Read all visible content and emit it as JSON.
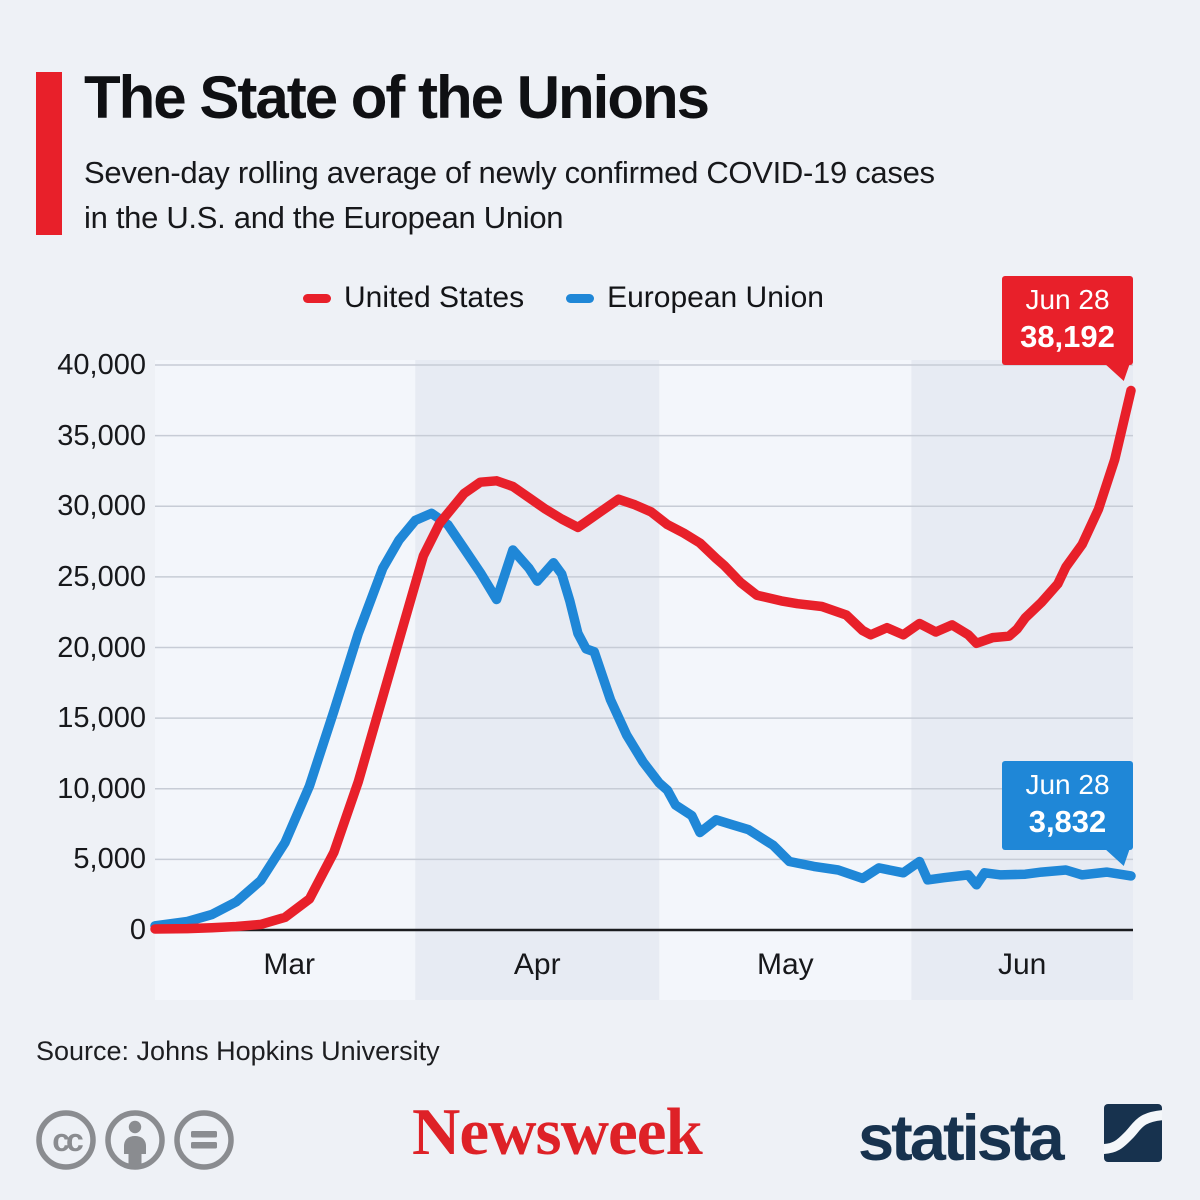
{
  "header": {
    "title": "The State of the Unions",
    "subtitle": "Seven-day rolling average of newly confirmed COVID-19 cases\nin the U.S. and the European Union"
  },
  "colors": {
    "accent_red": "#e8202a",
    "accent_blue": "#1f87d7",
    "page_bg": "#eef1f6",
    "plot_bg": "#f3f6fb",
    "band_bg": "#e7ebf3",
    "gridline": "#c7ccd6",
    "axis_line": "#1b1c1f",
    "cc_gray": "#8a8c90",
    "newsweek_red": "#de2127",
    "statista_navy": "#17324e"
  },
  "chart_data": {
    "type": "line",
    "title": "The State of the Unions",
    "subtitle": "Seven-day rolling average of newly confirmed COVID-19 cases in the U.S. and the European Union",
    "x_unit": "days since Feb 29, 2020",
    "ylim": [
      0,
      40000
    ],
    "grid": true,
    "legend_position": "top-center",
    "y_ticks": [
      {
        "v": 0,
        "label": "0"
      },
      {
        "v": 5000,
        "label": "5,000"
      },
      {
        "v": 10000,
        "label": "10,000"
      },
      {
        "v": 15000,
        "label": "15,000"
      },
      {
        "v": 20000,
        "label": "20,000"
      },
      {
        "v": 25000,
        "label": "25,000"
      },
      {
        "v": 30000,
        "label": "30,000"
      },
      {
        "v": 35000,
        "label": "35,000"
      },
      {
        "v": 40000,
        "label": "40,000"
      }
    ],
    "months": [
      {
        "label": "Mar",
        "start_day": 1,
        "end_day": 32,
        "shaded": false
      },
      {
        "label": "Apr",
        "start_day": 32,
        "end_day": 62,
        "shaded": true
      },
      {
        "label": "May",
        "start_day": 62,
        "end_day": 93,
        "shaded": false
      },
      {
        "label": "Jun",
        "start_day": 93,
        "end_day": 120,
        "shaded": true
      }
    ],
    "series": [
      {
        "name": "United States",
        "color": "#e8202a",
        "end_label": {
          "date": "Jun 28",
          "value": "38,192"
        },
        "points": [
          [
            0,
            70
          ],
          [
            4,
            100
          ],
          [
            7,
            160
          ],
          [
            10,
            250
          ],
          [
            13,
            400
          ],
          [
            16,
            900
          ],
          [
            19,
            2200
          ],
          [
            22,
            5500
          ],
          [
            25,
            10500
          ],
          [
            28,
            16500
          ],
          [
            31,
            22500
          ],
          [
            33,
            26500
          ],
          [
            35,
            28800
          ],
          [
            38,
            30900
          ],
          [
            40,
            31700
          ],
          [
            42,
            31800
          ],
          [
            44,
            31400
          ],
          [
            45,
            31000
          ],
          [
            46,
            30600
          ],
          [
            48,
            29800
          ],
          [
            50,
            29100
          ],
          [
            52,
            28500
          ],
          [
            53,
            28900
          ],
          [
            55,
            29700
          ],
          [
            57,
            30500
          ],
          [
            59,
            30100
          ],
          [
            61,
            29600
          ],
          [
            63,
            28700
          ],
          [
            65,
            28100
          ],
          [
            67,
            27400
          ],
          [
            69,
            26300
          ],
          [
            70,
            25800
          ],
          [
            72,
            24600
          ],
          [
            74,
            23700
          ],
          [
            77,
            23300
          ],
          [
            79,
            23100
          ],
          [
            82,
            22900
          ],
          [
            85,
            22300
          ],
          [
            87,
            21200
          ],
          [
            88,
            20900
          ],
          [
            90,
            21400
          ],
          [
            92,
            20900
          ],
          [
            94,
            21700
          ],
          [
            96,
            21100
          ],
          [
            98,
            21600
          ],
          [
            100,
            20900
          ],
          [
            101,
            20300
          ],
          [
            103,
            20700
          ],
          [
            105,
            20800
          ],
          [
            106,
            21300
          ],
          [
            107,
            22100
          ],
          [
            109,
            23200
          ],
          [
            111,
            24500
          ],
          [
            112,
            25700
          ],
          [
            114,
            27300
          ],
          [
            116,
            29800
          ],
          [
            118,
            33300
          ],
          [
            120,
            38192
          ]
        ]
      },
      {
        "name": "European Union",
        "color": "#1f87d7",
        "end_label": {
          "date": "Jun 28",
          "value": "3,832"
        },
        "points": [
          [
            0,
            300
          ],
          [
            4,
            600
          ],
          [
            7,
            1100
          ],
          [
            10,
            2000
          ],
          [
            13,
            3500
          ],
          [
            16,
            6200
          ],
          [
            19,
            10200
          ],
          [
            22,
            15500
          ],
          [
            25,
            21000
          ],
          [
            28,
            25600
          ],
          [
            30,
            27600
          ],
          [
            32,
            29000
          ],
          [
            34,
            29500
          ],
          [
            36,
            28700
          ],
          [
            38,
            27000
          ],
          [
            40,
            25300
          ],
          [
            42,
            23400
          ],
          [
            44,
            26900
          ],
          [
            46,
            25600
          ],
          [
            47,
            24700
          ],
          [
            49,
            26000
          ],
          [
            50,
            25200
          ],
          [
            51,
            23300
          ],
          [
            52,
            21000
          ],
          [
            53,
            19900
          ],
          [
            54,
            19700
          ],
          [
            56,
            16300
          ],
          [
            58,
            13800
          ],
          [
            60,
            11900
          ],
          [
            62,
            10400
          ],
          [
            63,
            9900
          ],
          [
            64,
            8850
          ],
          [
            66,
            8100
          ],
          [
            67,
            6900
          ],
          [
            69,
            7800
          ],
          [
            71,
            7450
          ],
          [
            73,
            7100
          ],
          [
            76,
            6000
          ],
          [
            78,
            4850
          ],
          [
            81,
            4500
          ],
          [
            84,
            4250
          ],
          [
            87,
            3650
          ],
          [
            89,
            4400
          ],
          [
            92,
            4050
          ],
          [
            94,
            4850
          ],
          [
            95,
            3550
          ],
          [
            97,
            3700
          ],
          [
            100,
            3900
          ],
          [
            101,
            3200
          ],
          [
            102,
            4050
          ],
          [
            104,
            3900
          ],
          [
            107,
            3950
          ],
          [
            109,
            4100
          ],
          [
            112,
            4250
          ],
          [
            114,
            3900
          ],
          [
            117,
            4100
          ],
          [
            120,
            3832
          ]
        ]
      }
    ]
  },
  "footer": {
    "source": "Source: Johns Hopkins University",
    "newsweek_wordmark": "Newsweek",
    "statista_wordmark": "statista",
    "cc_icons": [
      "cc-license-icon",
      "cc-attribution-icon",
      "cc-no-derivatives-icon"
    ]
  }
}
